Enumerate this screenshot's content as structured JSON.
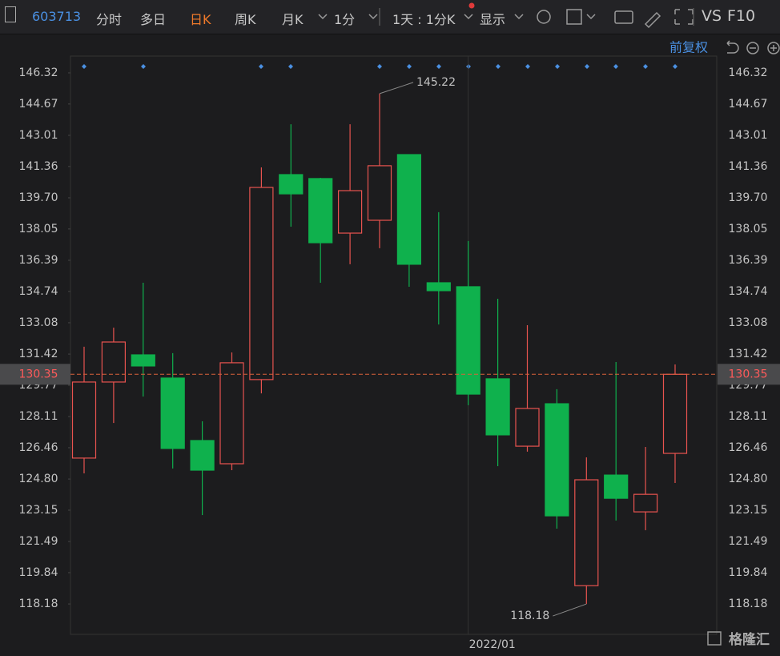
{
  "toolbar": {
    "code": "603713",
    "tabs": [
      "分时",
      "多日",
      "日K",
      "周K",
      "月K",
      "1分"
    ],
    "period": "1天 : 1分K",
    "display": "显示",
    "vs": "VS",
    "f10": "F10"
  },
  "adjust": "前复权",
  "watermark": "格隆汇",
  "chart_data": {
    "type": "candlestick",
    "categories": [
      null,
      null,
      null,
      null,
      null,
      null,
      null,
      null,
      null,
      null,
      null,
      null,
      null,
      "2022/01",
      null,
      null,
      null,
      null,
      null,
      null,
      null
    ],
    "series": [
      {
        "up_color": "#e8534f",
        "down_color": "#0fb14d",
        "open": [
          125.91,
          129.94,
          131.38,
          130.15,
          126.84,
          125.61,
          130.07,
          140.93,
          140.72,
          137.83,
          138.51,
          141.99,
          135.2,
          134.99,
          130.11,
          126.54,
          128.79,
          119.15,
          125.01,
          123.06,
          126.16
        ],
        "high": [
          131.81,
          132.82,
          135.2,
          131.47,
          127.86,
          131.51,
          141.31,
          143.6,
          140.76,
          143.6,
          145.22,
          141.99,
          138.94,
          137.41,
          134.35,
          132.95,
          129.56,
          125.95,
          131.0,
          126.5,
          130.87
        ],
        "low": [
          125.1,
          127.77,
          129.17,
          125.36,
          122.89,
          125.27,
          129.34,
          138.17,
          135.2,
          136.18,
          137.03,
          134.99,
          132.99,
          128.71,
          125.48,
          126.25,
          122.17,
          118.18,
          122.6,
          122.09,
          124.59
        ],
        "close": [
          129.94,
          132.06,
          130.79,
          126.42,
          125.27,
          130.96,
          140.25,
          139.91,
          137.32,
          140.08,
          141.4,
          136.18,
          134.78,
          129.3,
          127.14,
          128.54,
          122.85,
          124.76,
          123.78,
          123.99,
          130.35
        ]
      }
    ],
    "ylim": [
      116.57,
      147.21
    ],
    "yticks": [
      146.32,
      144.67,
      143.01,
      141.36,
      {
        "value": 139.7,
        "label": "139.70"
      },
      138.05,
      136.39,
      134.74,
      133.08,
      131.42,
      129.77,
      128.11,
      126.46,
      {
        "value": 124.8,
        "label": "124.80"
      },
      123.15,
      121.49,
      119.84,
      118.18
    ],
    "last_price": 130.35,
    "high_label": 145.22,
    "low_label": 118.18
  }
}
